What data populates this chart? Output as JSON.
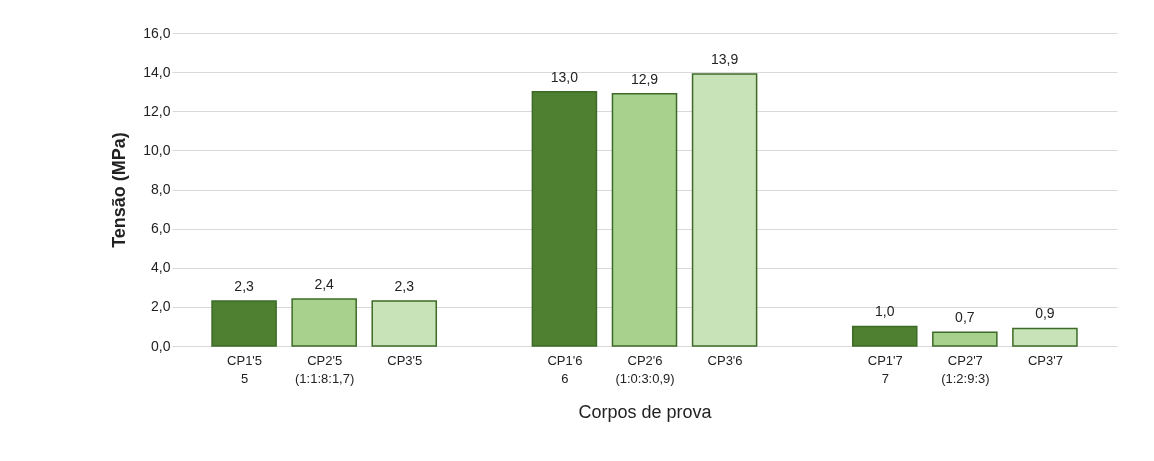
{
  "chart_data": {
    "type": "bar",
    "xlabel": "Corpos de prova",
    "ylabel": "Tensão (MPa)",
    "categories": [
      "CP1'5\n5",
      "CP2'5\n(1:1:8:1,7)",
      "CP3'5",
      "CP1'6\n6",
      "CP2'6\n(1:0:3:0,9)",
      "CP3'6",
      "CP1'7\n7",
      "CP2'7\n(1:2:9:3)",
      "CP3'7"
    ],
    "values": [
      2.3,
      2.4,
      2.3,
      13.0,
      12.9,
      13.9,
      1.0,
      0.7,
      0.9
    ],
    "colors": [
      "#4f7f30",
      "#a9d18e",
      "#c9e3b8",
      "#4f7f30",
      "#a9d18e",
      "#c9e3b8",
      "#4f7f30",
      "#a9d18e",
      "#c9e3b8"
    ],
    "value_labels": [
      "2,3",
      "2,4",
      "2,3",
      "13,0",
      "12,9",
      "13,9",
      "1,0",
      "0,7",
      "0,9"
    ],
    "ylim": [
      0,
      16
    ],
    "yticks": [
      {
        "value": 0,
        "label": "0,0"
      },
      {
        "value": 2,
        "label": "2,0"
      },
      {
        "value": 4,
        "label": "4,0"
      },
      {
        "value": 6,
        "label": "6,0"
      },
      {
        "value": 8,
        "label": "8,0"
      },
      {
        "value": 10,
        "label": "10,0"
      },
      {
        "value": 12,
        "label": "12,0"
      },
      {
        "value": 14,
        "label": "14,0"
      },
      {
        "value": 16,
        "label": "16,0"
      }
    ],
    "grid": "y"
  }
}
